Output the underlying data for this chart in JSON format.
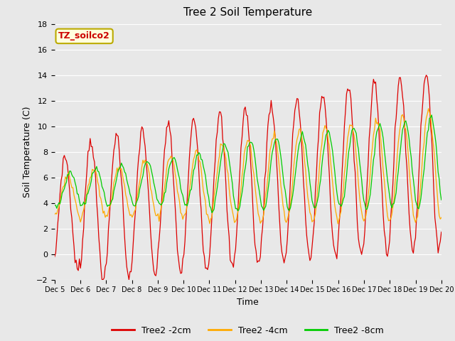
{
  "title": "Tree 2 Soil Temperature",
  "xlabel": "Time",
  "ylabel": "Soil Temperature (C)",
  "ylim": [
    -2,
    18
  ],
  "annotation": "TZ_soilco2",
  "annotation_color": "#cc0000",
  "annotation_bg": "#ffffdd",
  "annotation_border": "#bbaa00",
  "fig_bg": "#e8e8e8",
  "plot_bg": "#e8e8e8",
  "line_colors": {
    "2cm": "#dd0000",
    "4cm": "#ffaa00",
    "8cm": "#00cc00"
  },
  "legend_labels": [
    "Tree2 -2cm",
    "Tree2 -4cm",
    "Tree2 -8cm"
  ],
  "x_tick_labels": [
    "Dec 5",
    "Dec 6",
    "Dec 7",
    "Dec 8",
    "Dec 9",
    "Dec 10",
    "Dec 11",
    "Dec 12",
    "Dec 13",
    "Dec 14",
    "Dec 15",
    "Dec 16",
    "Dec 17",
    "Dec 18",
    "Dec 19",
    "Dec 20"
  ],
  "grid_color": "#ffffff",
  "n_days": 15
}
